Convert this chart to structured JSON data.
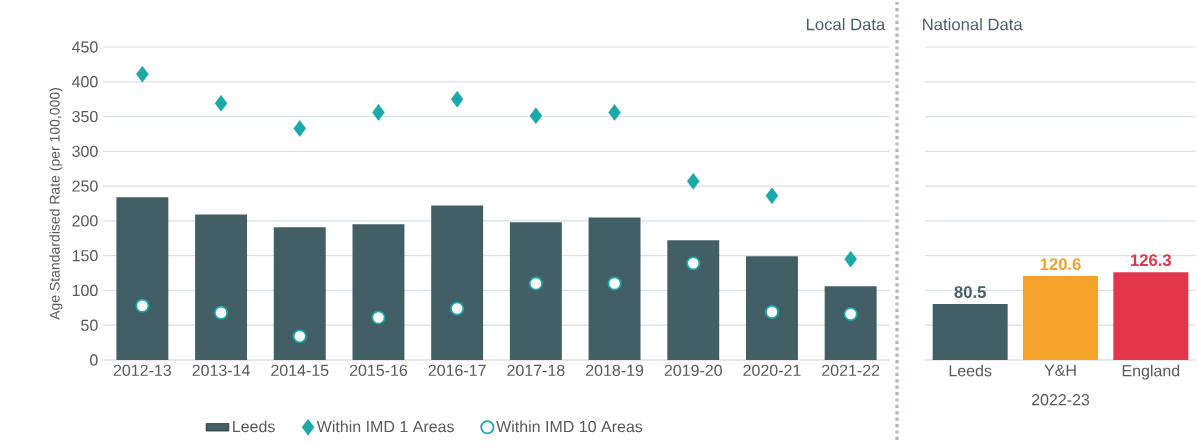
{
  "chart_data": [
    {
      "type": "bar",
      "title": "Local Data",
      "ylabel": "Age Standardised Rate (per 100,000)",
      "categories": [
        "2012-13",
        "2013-14",
        "2014-15",
        "2015-16",
        "2016-17",
        "2017-18",
        "2018-19",
        "2019-20",
        "2020-21",
        "2021-22"
      ],
      "series": [
        {
          "name": "Leeds",
          "color": "#435f66",
          "values": [
            234,
            209,
            191,
            195,
            222,
            198,
            205,
            172,
            149,
            106
          ]
        },
        {
          "name": "Within IMD 1 Areas",
          "type": "scatter",
          "marker": "diamond",
          "color": "#1aa8a8",
          "values": [
            411,
            369,
            333,
            356,
            375,
            351,
            356,
            257,
            236,
            145
          ]
        },
        {
          "name": "Within IMD 10 Areas",
          "type": "scatter",
          "marker": "circle",
          "color": "#1aa8a8",
          "values": [
            78,
            68,
            34,
            61,
            74,
            110,
            110,
            139,
            69,
            66
          ]
        }
      ],
      "ylim": [
        0,
        450
      ],
      "yticks": [
        0,
        50,
        100,
        150,
        200,
        250,
        300,
        350,
        400,
        450
      ],
      "grid": "y",
      "legend": "bottom"
    },
    {
      "type": "bar",
      "title": "National Data",
      "xlabel": "2022-23",
      "categories": [
        "Leeds",
        "Y&H",
        "England"
      ],
      "values": [
        80.5,
        120.6,
        126.3
      ],
      "colors": [
        "#435f66",
        "#f4a22a",
        "#e4364a"
      ],
      "data_labels": true,
      "ylim": [
        0,
        450
      ],
      "yticks": [
        0,
        50,
        100,
        150,
        200,
        250,
        300,
        350,
        400,
        450
      ],
      "grid": "y",
      "tick_labels": "x"
    }
  ]
}
